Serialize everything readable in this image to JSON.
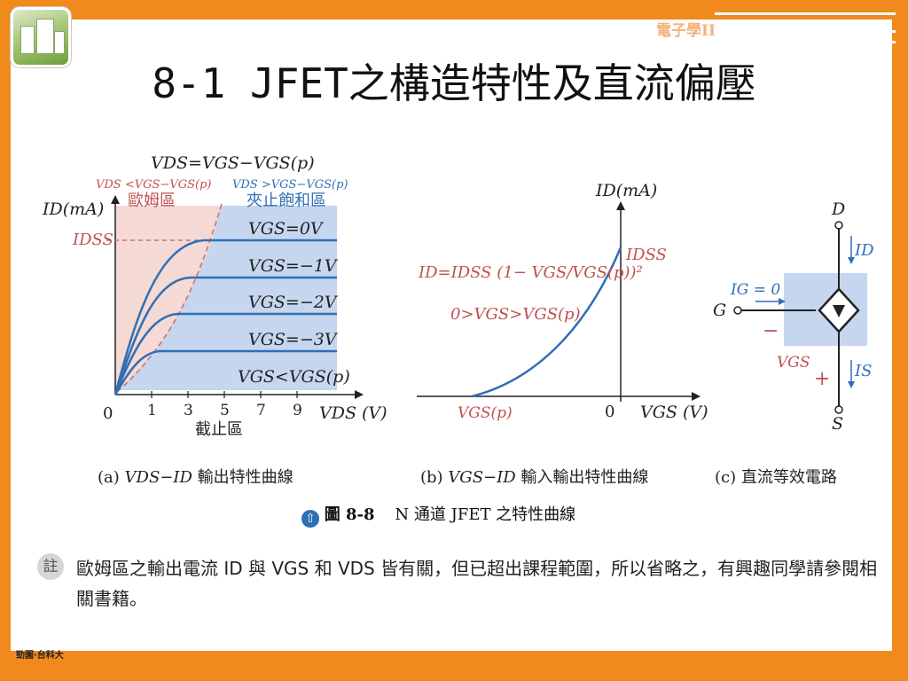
{
  "header": {
    "brand": "電子學II",
    "title": "8-1  JFET之構造特性及直流偏壓"
  },
  "figure": {
    "a": {
      "eq_top": "VDS=VGS−VGS(p)",
      "left_cond": "VDS <VGS−VGS(p)",
      "right_cond": "VDS >VGS−VGS(p)",
      "ohmic": "歐姆區",
      "pinch": "夾止飽和區",
      "ylabel": "ID(mA)",
      "idss": "IDSS",
      "curves": [
        "VGS=0V",
        "VGS=−1V",
        "VGS=−2V",
        "VGS=−3V",
        "VGS<VGS(p)"
      ],
      "xticks": [
        "0",
        "1",
        "3",
        "5",
        "7",
        "9"
      ],
      "xlabel": "VDS (V)",
      "cutoff": "截止區",
      "caption_prefix": "(a)",
      "caption_vars": "VDS−ID",
      "caption_text": "輸出特性曲線"
    },
    "b": {
      "ylabel": "ID(mA)",
      "idss": "IDSS",
      "equation": "ID=IDSS (1− VGS/VGS(p))²",
      "condition": "0>VGS>VGS(p)",
      "x0": "VGS(p)",
      "zero": "0",
      "xlabel": "VGS (V)",
      "caption_prefix": "(b)",
      "caption_vars": "VGS−ID",
      "caption_text": "輸入輸出特性曲線"
    },
    "c": {
      "d": "D",
      "g": "G",
      "s": "S",
      "id": "ID",
      "ig": "IG = 0",
      "is": "IS",
      "vgs": "VGS",
      "minus": "−",
      "plus": "+",
      "caption": "(c) 直流等效電路"
    },
    "caption_figure": "圖 8-8",
    "caption_text": "N 通道 JFET 之特性曲線"
  },
  "note": {
    "badge": "註",
    "text": "歐姆區之輸出電流 ID 與 VGS 和 VDS 皆有關，但已超出課程範圍，所以省略之，有興趣同學請參閱相關書籍。"
  },
  "footer": {
    "logo": "勁園·台科大"
  }
}
